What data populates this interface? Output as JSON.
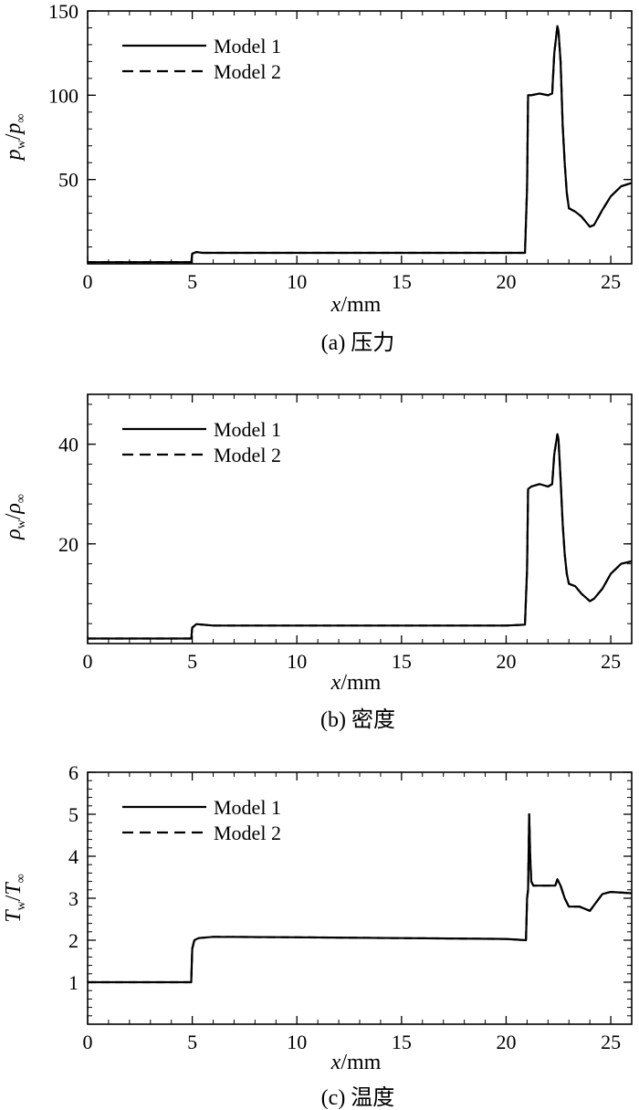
{
  "chart_data": [
    {
      "type": "line",
      "caption": "(a) 压力",
      "xlabel": "x/mm",
      "ylabel": "p_w/p_∞",
      "xlim": [
        0,
        26
      ],
      "ylim": [
        0,
        150
      ],
      "xticks": [
        0,
        5,
        10,
        15,
        20,
        25
      ],
      "yticks": [
        50,
        100,
        150
      ],
      "legend_position": "top-left",
      "series": [
        {
          "name": "Model 1",
          "style": "solid",
          "x": [
            0,
            4.95,
            5.0,
            5.2,
            5.5,
            10,
            15,
            20.9,
            21.0,
            21.05,
            21.2,
            21.6,
            22.0,
            22.2,
            22.3,
            22.45,
            22.5,
            22.6,
            22.7,
            22.8,
            22.9,
            23.0,
            23.3,
            23.6,
            24.0,
            24.2,
            24.6,
            25.0,
            25.5,
            26.0
          ],
          "y": [
            1,
            1,
            6,
            7,
            6.5,
            6.5,
            6.5,
            6.5,
            45,
            100,
            100,
            101,
            100,
            101,
            125,
            141,
            138,
            120,
            82,
            60,
            42,
            33,
            31,
            28,
            22,
            23,
            32,
            40,
            46,
            48
          ]
        },
        {
          "name": "Model 2",
          "style": "dashed",
          "x": [
            0,
            4.95,
            5.0,
            5.2,
            5.5,
            10,
            15,
            20.9,
            21.0,
            21.05,
            21.2,
            21.6,
            22.0,
            22.2,
            22.3,
            22.45,
            22.5,
            22.6,
            22.7,
            22.8,
            22.9,
            23.0,
            23.3,
            23.6,
            24.0,
            24.2,
            24.6,
            25.0,
            25.5,
            26.0
          ],
          "y": [
            1,
            1,
            6,
            7,
            6.5,
            6.5,
            6.5,
            6.5,
            45,
            100,
            100,
            101,
            100,
            101,
            125,
            141,
            138,
            120,
            82,
            60,
            42,
            33,
            31,
            28,
            22,
            23,
            32,
            40,
            46,
            48
          ]
        }
      ]
    },
    {
      "type": "line",
      "caption": "(b) 密度",
      "xlabel": "x/mm",
      "ylabel": "ρ_w/ρ_∞",
      "xlim": [
        0,
        26
      ],
      "ylim": [
        0,
        50
      ],
      "xticks": [
        0,
        5,
        10,
        15,
        20,
        25
      ],
      "yticks": [
        20,
        40
      ],
      "legend_position": "top-left",
      "series": [
        {
          "name": "Model 1",
          "style": "solid",
          "x": [
            0,
            4.95,
            5.0,
            5.2,
            6.0,
            10,
            15,
            20,
            20.9,
            21.0,
            21.05,
            21.2,
            21.6,
            22.0,
            22.2,
            22.3,
            22.45,
            22.5,
            22.6,
            22.7,
            22.8,
            22.9,
            23.0,
            23.3,
            23.6,
            24.0,
            24.2,
            24.6,
            25.0,
            25.5,
            26.0
          ],
          "y": [
            1,
            1,
            3.2,
            3.9,
            3.6,
            3.6,
            3.6,
            3.6,
            3.8,
            15,
            31,
            31.5,
            32,
            31.5,
            32,
            38,
            42,
            41,
            33,
            24,
            18,
            14,
            12,
            11.5,
            10,
            8.5,
            9,
            11,
            14,
            16,
            16.5
          ]
        },
        {
          "name": "Model 2",
          "style": "dashed",
          "x": [
            0,
            4.95,
            5.0,
            5.2,
            6.0,
            10,
            15,
            20,
            20.9,
            21.0,
            21.05,
            21.2,
            21.6,
            22.0,
            22.2,
            22.3,
            22.45,
            22.5,
            22.6,
            22.7,
            22.8,
            22.9,
            23.0,
            23.3,
            23.6,
            24.0,
            24.2,
            24.6,
            25.0,
            25.5,
            26.0
          ],
          "y": [
            1,
            1,
            3.2,
            3.9,
            3.6,
            3.6,
            3.6,
            3.6,
            3.8,
            15,
            31,
            31.5,
            32,
            31.5,
            32,
            38,
            42,
            41,
            33,
            24,
            18,
            14,
            12,
            11.5,
            10,
            8.5,
            9,
            11,
            14,
            16,
            16.5
          ]
        }
      ]
    },
    {
      "type": "line",
      "caption": "(c) 温度",
      "xlabel": "x/mm",
      "ylabel": "T_w/T_∞",
      "xlim": [
        0,
        26
      ],
      "ylim": [
        0,
        6
      ],
      "xticks": [
        0,
        5,
        10,
        15,
        20,
        25
      ],
      "yticks": [
        1,
        2,
        3,
        4,
        5,
        6
      ],
      "legend_position": "top-left",
      "series": [
        {
          "name": "Model 1",
          "style": "solid",
          "x": [
            0,
            4.95,
            5.0,
            5.1,
            5.3,
            6.0,
            10,
            15,
            20,
            20.95,
            21.0,
            21.05,
            21.1,
            21.15,
            21.2,
            21.3,
            21.5,
            22.0,
            22.35,
            22.45,
            22.6,
            22.8,
            23.0,
            23.5,
            24.0,
            24.3,
            24.6,
            25.0,
            26.0
          ],
          "y": [
            1,
            1,
            1.8,
            2.0,
            2.05,
            2.08,
            2.07,
            2.05,
            2.03,
            2.0,
            3.0,
            3.2,
            5.0,
            4.0,
            3.4,
            3.3,
            3.3,
            3.3,
            3.3,
            3.45,
            3.3,
            3.0,
            2.8,
            2.8,
            2.7,
            2.9,
            3.1,
            3.15,
            3.12
          ]
        },
        {
          "name": "Model 2",
          "style": "dashed",
          "x": [
            0,
            4.95,
            5.0,
            5.1,
            5.3,
            6.0,
            10,
            15,
            20,
            20.95,
            21.0,
            21.05,
            21.1,
            21.15,
            21.2,
            21.3,
            21.5,
            22.0,
            22.35,
            22.45,
            22.6,
            22.8,
            23.0,
            23.5,
            24.0,
            24.3,
            24.6,
            25.0,
            26.0
          ],
          "y": [
            1,
            1,
            1.8,
            2.0,
            2.05,
            2.08,
            2.07,
            2.05,
            2.03,
            2.0,
            3.0,
            3.2,
            5.0,
            4.0,
            3.4,
            3.3,
            3.3,
            3.3,
            3.3,
            3.45,
            3.3,
            3.0,
            2.8,
            2.8,
            2.7,
            2.9,
            3.1,
            3.15,
            3.12
          ]
        }
      ]
    }
  ],
  "labels": {
    "x_var": "x",
    "x_unit": "/mm",
    "a_num": "p",
    "a_num_sub": "w",
    "a_den": "p",
    "a_den_sub": "∞",
    "b_num": "ρ",
    "b_num_sub": "w",
    "b_den": "ρ",
    "b_den_sub": "∞",
    "c_num": "T",
    "c_num_sub": "w",
    "c_den": "T",
    "c_den_sub": "∞",
    "slash": "/"
  }
}
